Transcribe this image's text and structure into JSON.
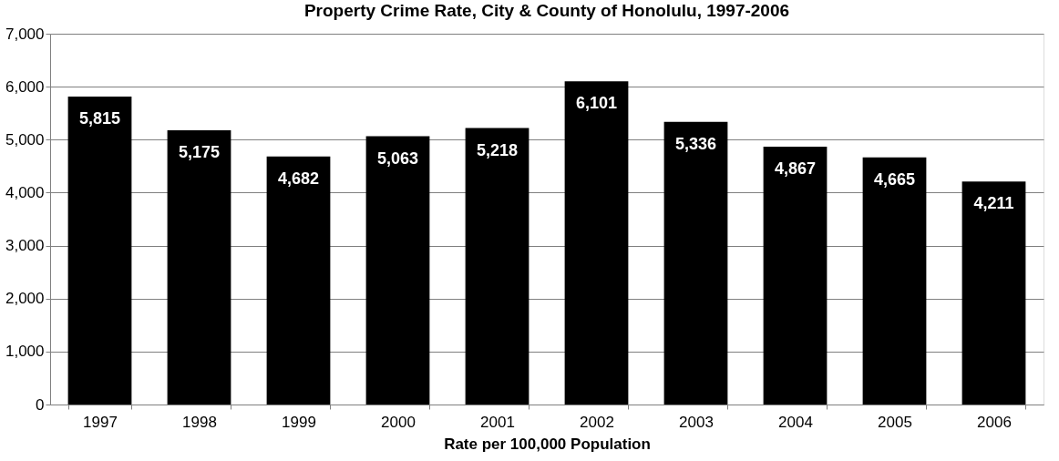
{
  "chart_data": {
    "type": "bar",
    "title": "Property Crime Rate, City & County of Honolulu, 1997-2006",
    "xlabel": "Rate per 100,000 Population",
    "categories": [
      "1997",
      "1998",
      "1999",
      "2000",
      "2001",
      "2002",
      "2003",
      "2004",
      "2005",
      "2006"
    ],
    "values": [
      5815,
      5175,
      4682,
      5063,
      5218,
      6101,
      5336,
      4867,
      4665,
      4211
    ],
    "value_labels": [
      "5,815",
      "5,175",
      "4,682",
      "5,063",
      "5,218",
      "6,101",
      "5,336",
      "4,867",
      "4,665",
      "4,211"
    ],
    "color": "#000000",
    "ylim": [
      0,
      7000
    ],
    "yticks": [
      0,
      {
        "value": 1000,
        "label": "1,000"
      },
      {
        "value": 2000,
        "label": "2,000"
      },
      {
        "value": 3000,
        "label": "3,000"
      },
      {
        "value": 4000,
        "label": "4,000"
      },
      {
        "value": 5000,
        "label": "5,000"
      },
      {
        "value": 6000,
        "label": "6,000"
      },
      {
        "value": 7000,
        "label": "7,000"
      }
    ],
    "grid": "y"
  }
}
